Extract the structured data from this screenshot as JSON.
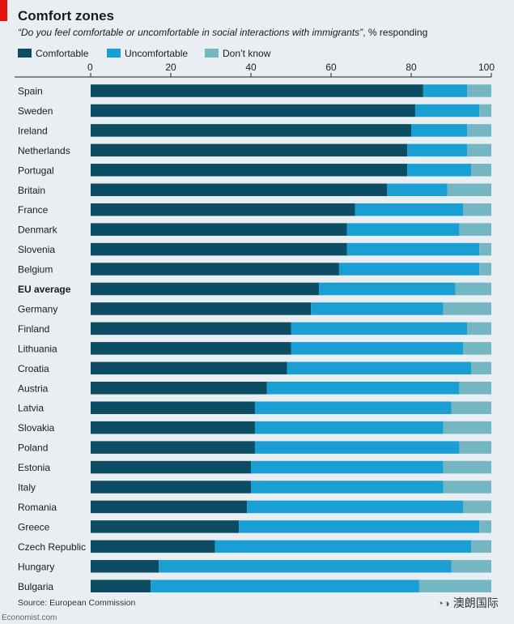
{
  "header": {
    "title": "Comfort zones",
    "subtitle_quote": "“Do you feel comfortable or uncomfortable in social interactions with immigrants”",
    "subtitle_rest": ", % responding"
  },
  "legend": [
    {
      "label": "Comfortable",
      "color": "#0d4d63"
    },
    {
      "label": "Uncomfortable",
      "color": "#1a9fd4"
    },
    {
      "label": "Don’t know",
      "color": "#74b7c3"
    }
  ],
  "footer": {
    "source": "Source: European Commission",
    "brand": "Economist.com",
    "watermark": "澳朗国际",
    "watermark_icon": "wechat-icon"
  },
  "chart_data": {
    "type": "bar",
    "orientation": "horizontal",
    "stacked": true,
    "title": "Comfort zones",
    "xlabel": "% responding",
    "xlim": [
      0,
      100
    ],
    "xticks": [
      0,
      20,
      40,
      60,
      80,
      100
    ],
    "highlight_category": "EU average",
    "categories": [
      "Spain",
      "Sweden",
      "Ireland",
      "Netherlands",
      "Portugal",
      "Britain",
      "France",
      "Denmark",
      "Slovenia",
      "Belgium",
      "EU average",
      "Germany",
      "Finland",
      "Lithuania",
      "Croatia",
      "Austria",
      "Latvia",
      "Slovakia",
      "Poland",
      "Estonia",
      "Italy",
      "Romania",
      "Greece",
      "Czech Republic",
      "Hungary",
      "Bulgaria"
    ],
    "series": [
      {
        "name": "Comfortable",
        "color": "#0d4d63",
        "values": [
          83,
          81,
          80,
          79,
          79,
          74,
          66,
          64,
          64,
          62,
          57,
          55,
          50,
          50,
          49,
          44,
          41,
          41,
          41,
          40,
          40,
          39,
          37,
          31,
          17,
          15
        ]
      },
      {
        "name": "Uncomfortable",
        "color": "#1a9fd4",
        "values": [
          11,
          16,
          14,
          15,
          16,
          15,
          27,
          28,
          33,
          35,
          34,
          33,
          44,
          43,
          46,
          48,
          49,
          47,
          51,
          48,
          48,
          54,
          60,
          64,
          73,
          67
        ]
      },
      {
        "name": "Don’t know",
        "color": "#74b7c3",
        "values": [
          6,
          3,
          6,
          6,
          5,
          11,
          7,
          8,
          3,
          3,
          9,
          12,
          6,
          7,
          5,
          8,
          10,
          12,
          8,
          12,
          12,
          7,
          3,
          5,
          10,
          18
        ]
      }
    ]
  }
}
